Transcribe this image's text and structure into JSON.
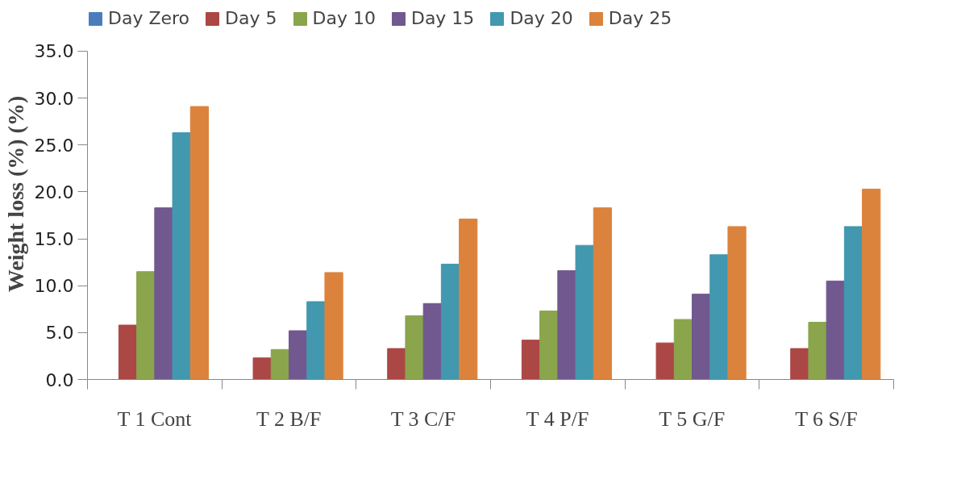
{
  "chart_data": {
    "type": "bar",
    "ylabel": "Weight loss (%) (%)",
    "categories": [
      "T 1 Cont",
      "T 2 B/F",
      "T 3 C/F",
      "T 4 P/F",
      "T 5 G/F",
      "T 6 S/F"
    ],
    "series": [
      {
        "name": "Day Zero",
        "color": "#4a7ebb",
        "values": [
          0,
          0,
          0,
          0,
          0,
          0
        ]
      },
      {
        "name": "Day 5",
        "color": "#ab4745",
        "values": [
          5.8,
          2.3,
          3.3,
          4.2,
          3.9,
          3.3
        ]
      },
      {
        "name": "Day 10",
        "color": "#8aa54c",
        "values": [
          11.5,
          3.2,
          6.8,
          7.3,
          6.4,
          6.1
        ]
      },
      {
        "name": "Day 15",
        "color": "#71588f",
        "values": [
          18.3,
          5.2,
          8.1,
          11.6,
          9.1,
          10.5
        ]
      },
      {
        "name": "Day 20",
        "color": "#4298af",
        "values": [
          26.3,
          8.3,
          12.3,
          14.3,
          13.3,
          16.3
        ]
      },
      {
        "name": "Day 25",
        "color": "#db833d",
        "values": [
          29.1,
          11.4,
          17.1,
          18.3,
          16.3,
          20.3
        ]
      }
    ],
    "ylim": [
      0,
      35
    ],
    "yticks": [
      {
        "value": 0,
        "label": "0.0"
      },
      {
        "value": 5,
        "label": "5.0"
      },
      {
        "value": 10,
        "label": "10.0"
      },
      {
        "value": 15,
        "label": "15.0"
      },
      {
        "value": 20,
        "label": "20.0"
      },
      {
        "value": 25,
        "label": "25.0"
      },
      {
        "value": 30,
        "label": "30.0"
      },
      {
        "value": 35,
        "label": "35.0"
      }
    ],
    "grid": false,
    "legend": "top"
  }
}
